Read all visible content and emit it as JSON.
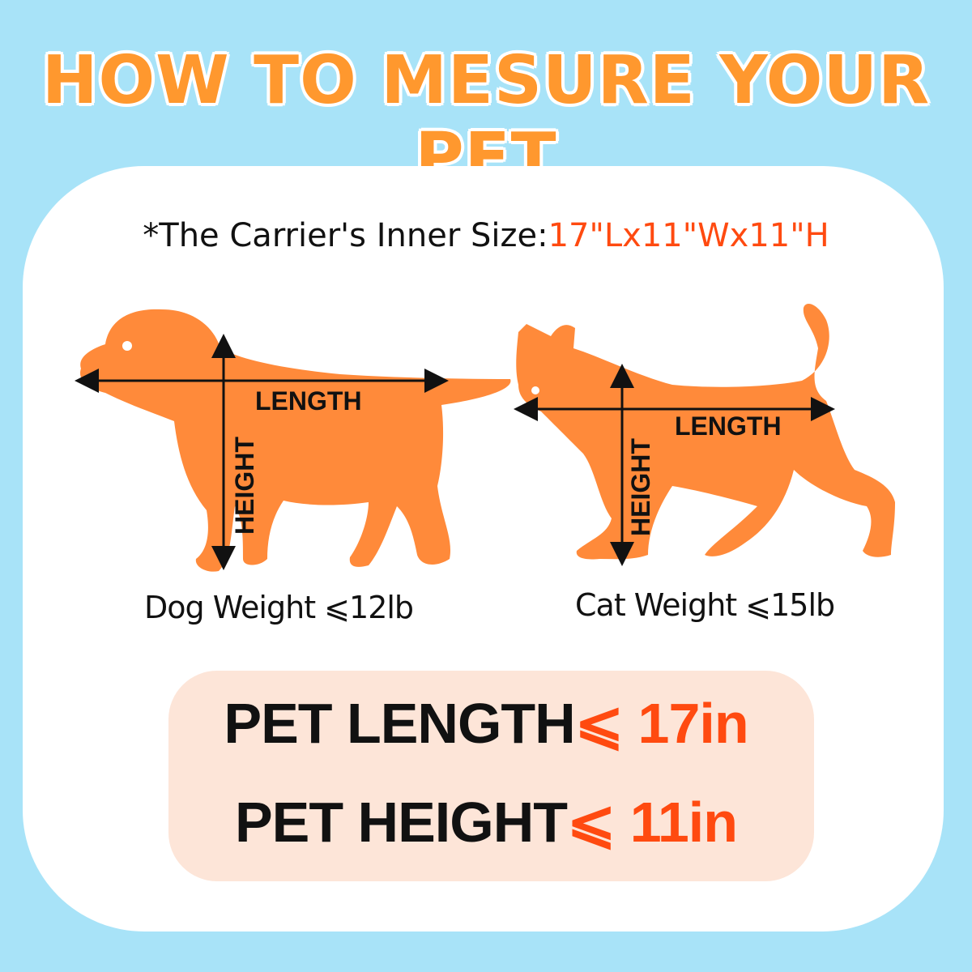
{
  "title": "HOW TO MESURE YOUR PET",
  "inner_size": {
    "label": "*The Carrier's Inner Size:",
    "value": "17\"Lx11\"Wx11\"H"
  },
  "dog": {
    "length_label": "LENGTH",
    "height_label": "HEIGHT",
    "weight": "Dog Weight ⩽12lb"
  },
  "cat": {
    "length_label": "LENGTH",
    "height_label": "HEIGHT",
    "weight": "Cat Weight ⩽15lb"
  },
  "limits": [
    {
      "label": "PET LENGTH",
      "symbol": "⩽",
      "value": "17in"
    },
    {
      "label": "PET HEIGHT",
      "symbol": "⩽",
      "value": "11in"
    }
  ],
  "colors": {
    "background": "#a8e3f8",
    "title": "#ff982e",
    "silhouette": "#ff8a3a",
    "accent": "#ff4a10",
    "limits_box": "#fde5d8"
  }
}
